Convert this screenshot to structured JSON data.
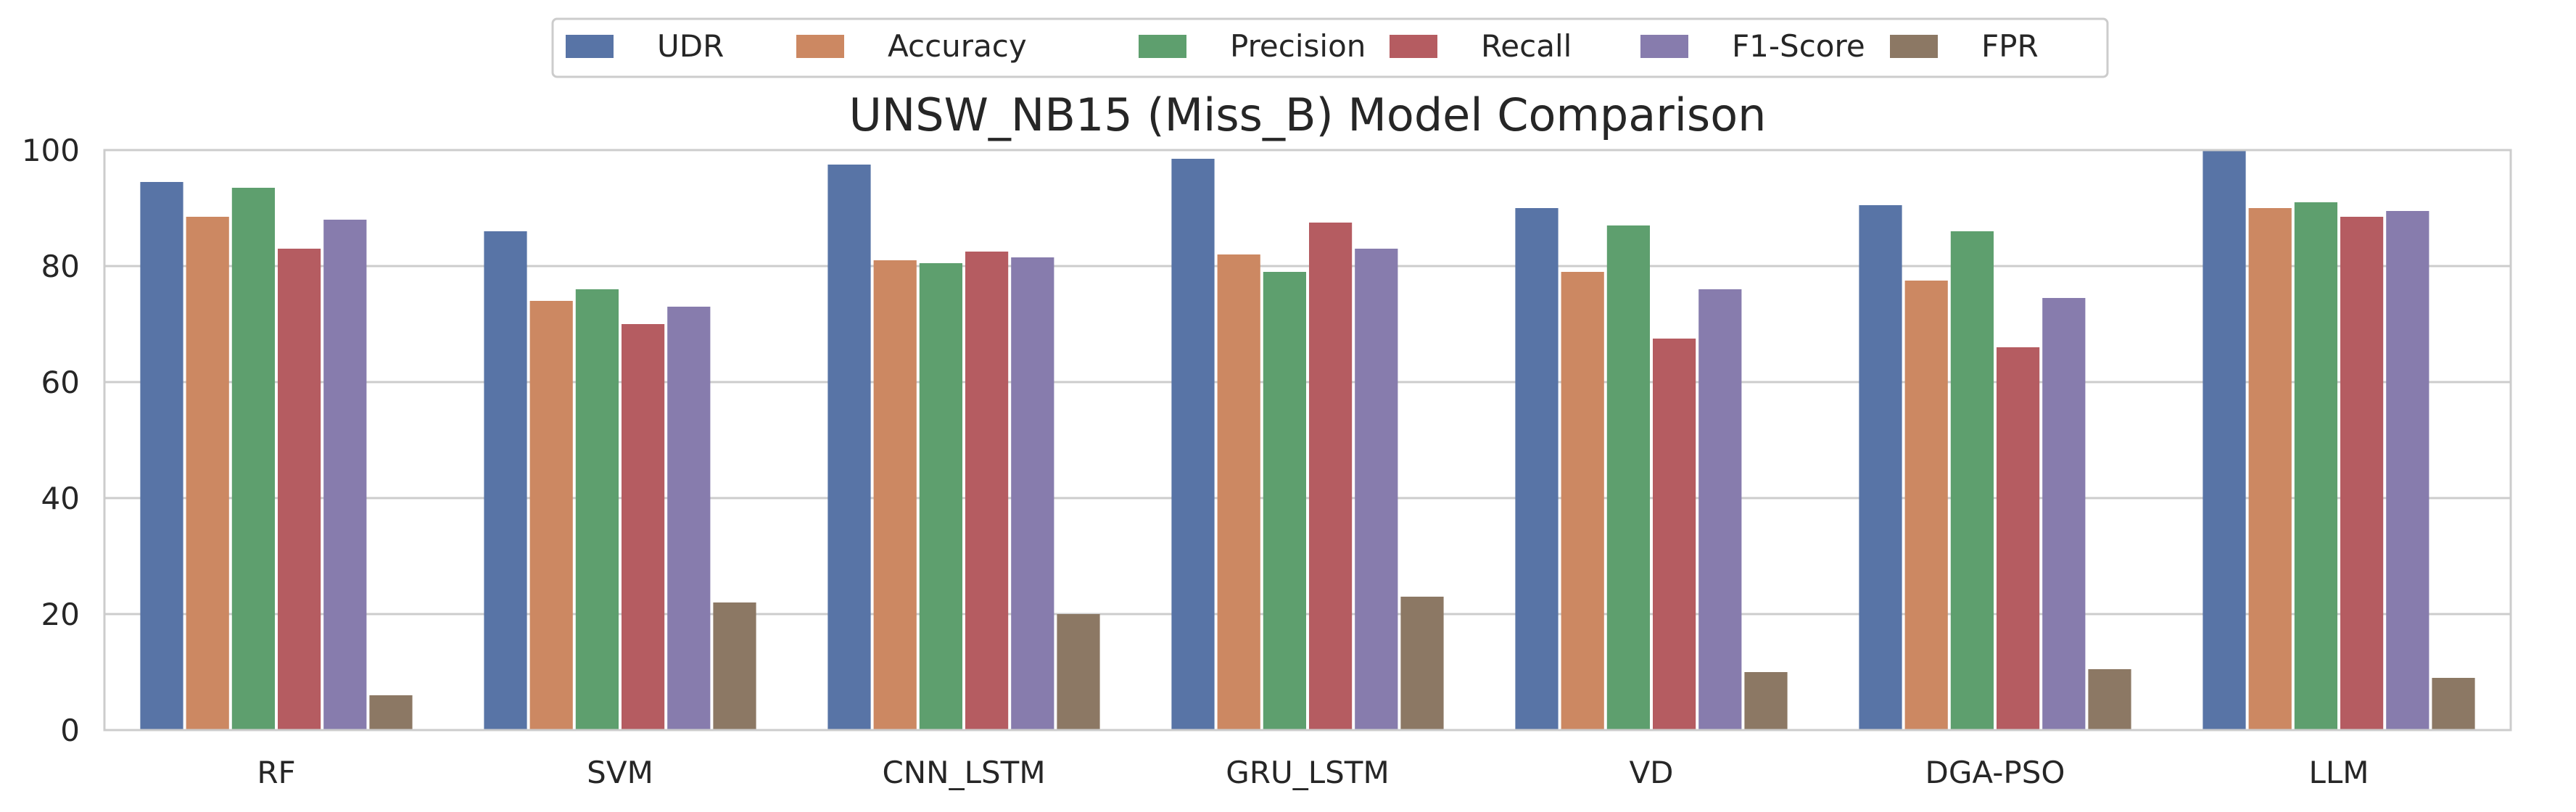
{
  "chart_data": {
    "type": "bar",
    "title": "UNSW_NB15 (Miss_B) Model Comparison",
    "xlabel": "",
    "ylabel": "",
    "ylim": [
      0,
      100
    ],
    "yticks": [
      0,
      20,
      40,
      60,
      80,
      100
    ],
    "grid": true,
    "legend_position": "top-center",
    "categories": [
      "RF",
      "SVM",
      "CNN_LSTM",
      "GRU_LSTM",
      "VD",
      "DGA-PSO",
      "LLM"
    ],
    "series": [
      {
        "name": "UDR",
        "color": "#5874a6",
        "values": [
          94.5,
          86.0,
          97.5,
          98.5,
          90.0,
          90.5,
          100.0
        ]
      },
      {
        "name": "Accuracy",
        "color": "#cc8862",
        "values": [
          88.5,
          74.0,
          81.0,
          82.0,
          79.0,
          77.5,
          90.0
        ]
      },
      {
        "name": "Precision",
        "color": "#5e9f6e",
        "values": [
          93.5,
          76.0,
          80.5,
          79.0,
          87.0,
          86.0,
          91.0
        ]
      },
      {
        "name": "Recall",
        "color": "#b55c61",
        "values": [
          83.0,
          70.0,
          82.5,
          87.5,
          67.5,
          66.0,
          88.5
        ]
      },
      {
        "name": "F1-Score",
        "color": "#877cad",
        "values": [
          88.0,
          73.0,
          81.5,
          83.0,
          76.0,
          74.5,
          89.5
        ]
      },
      {
        "name": "FPR",
        "color": "#8c7864",
        "values": [
          6.0,
          22.0,
          20.0,
          23.0,
          10.0,
          10.5,
          9.0
        ]
      }
    ]
  }
}
